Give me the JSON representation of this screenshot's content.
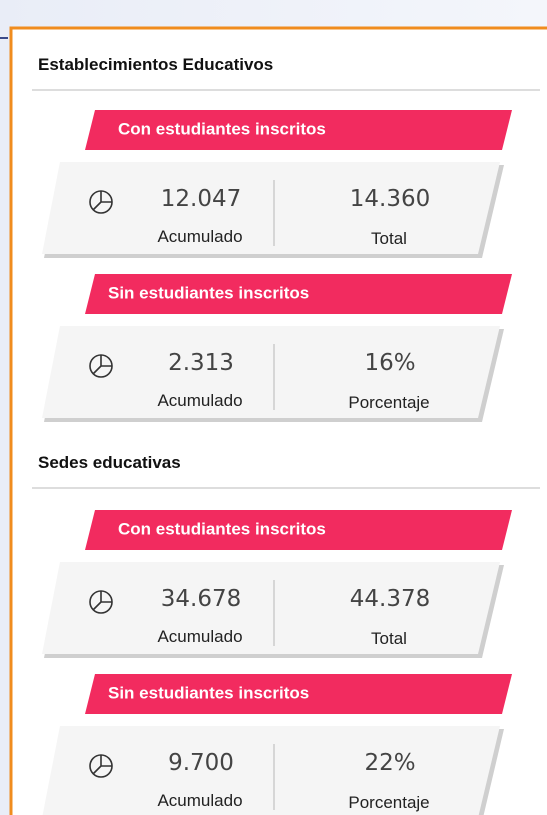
{
  "sections": [
    {
      "title": "Establecimientos Educativos",
      "groups": [
        {
          "banner": "Con estudiantes inscritos",
          "value1": "12.047",
          "label1": "Acumulado",
          "value2": "14.360",
          "label2": "Total"
        },
        {
          "banner": "Sin estudiantes inscritos",
          "value1": "2.313",
          "label1": "Acumulado",
          "value2": "16%",
          "label2": "Porcentaje"
        }
      ]
    },
    {
      "title": "Sedes educativas",
      "groups": [
        {
          "banner": "Con estudiantes inscritos",
          "value1": "34.678",
          "label1": "Acumulado",
          "value2": "44.378",
          "label2": "Total"
        },
        {
          "banner": "Sin estudiantes inscritos",
          "value1": "9.700",
          "label1": "Acumulado",
          "value2": "22%",
          "label2": "Porcentaje"
        }
      ]
    }
  ]
}
